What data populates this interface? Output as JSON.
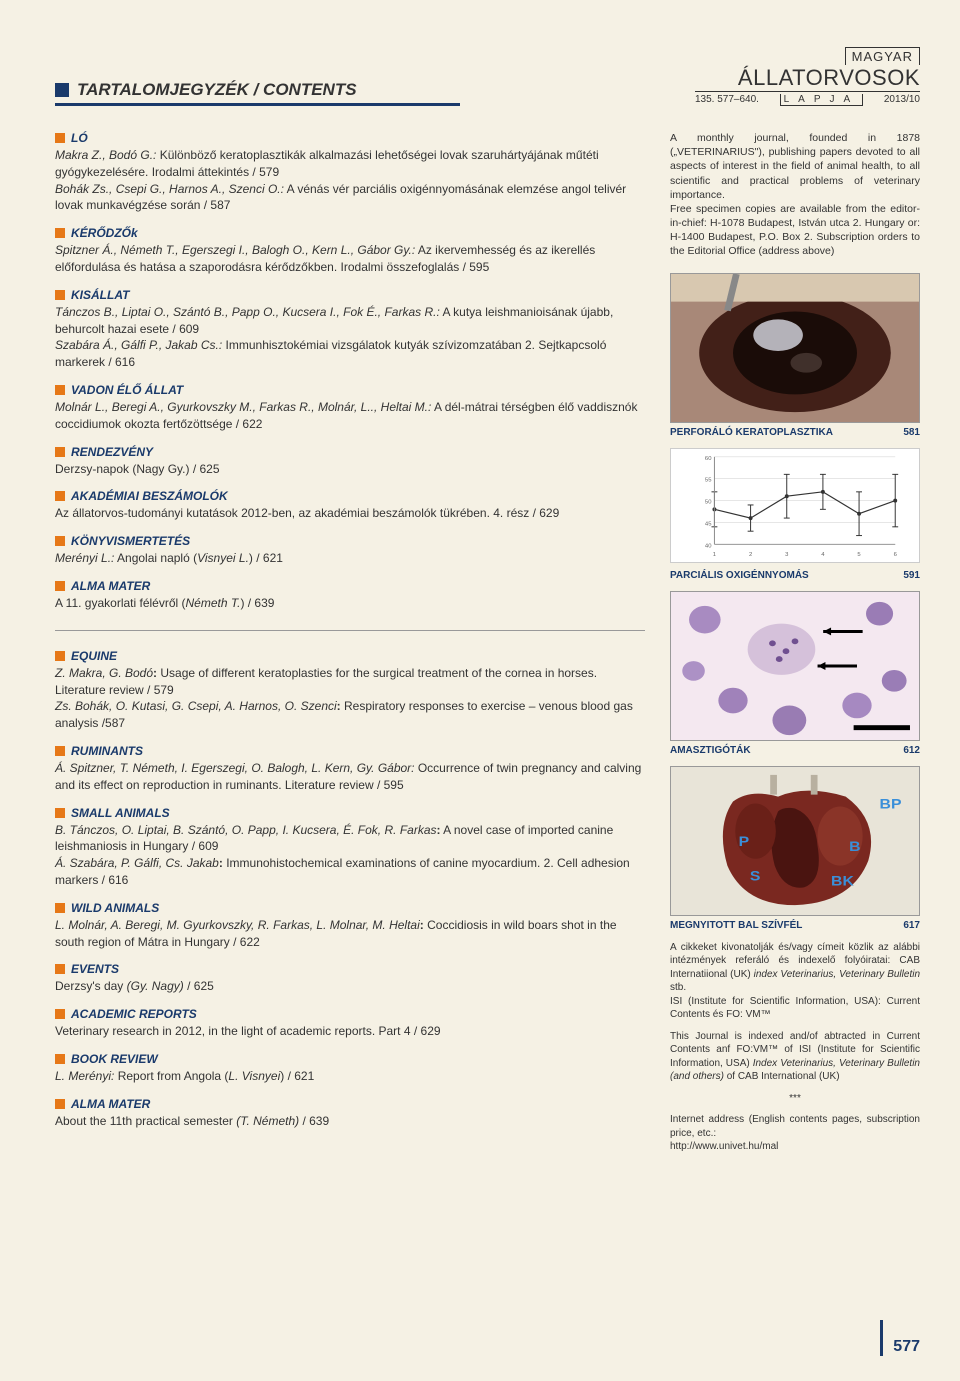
{
  "journal": {
    "supertitle": "MAGYAR",
    "title": "ÁLLATORVOSOK",
    "subtitle": "LAPJA",
    "issue_left": "135. 577–640.",
    "issue_right": "2013/10"
  },
  "contents_heading": "TARTALOMJEGYZÉK / CONTENTS",
  "page_number": "577",
  "about": {
    "p1": "A monthly journal, founded in 1878 („VETERINARIUS\"), publishing papers devoted to all aspects of interest in the field of animal health, to all scientific and practical problems of veterinary importance.",
    "p2": "Free specimen copies are available from the editor-in-chief: H-1078 Budapest, István utca 2. Hungary or: H-1400 Budapest, P.O. Box 2. Subscription orders to the Editorial Office (address above)"
  },
  "sections_hu": [
    {
      "label": "LÓ",
      "body": "<i>Makra Z., Bodó G.:</i> Különböző keratoplasztikák alkalmazási lehetőségei lovak szaruhártyájának műtéti gyógykezelésére. Irodalmi áttekintés / 579<br><i>Bohák Zs., Csepi G., Harnos A., Szenci O.:</i> A vénás vér parciális oxigénnyomásának elemzése angol telivér lovak munkavégzése során / 587"
    },
    {
      "label": "KÉRŐDZŐk",
      "body": "<i>Spitzner Á., Németh T., Egerszegi I., Balogh O., Kern L., Gábor Gy.:</i> Az ikervemhesség és az ikerellés előfordulása és hatása a szaporodásra kérődzőkben. Irodalmi összefoglalás / 595"
    },
    {
      "label": "KISÁLLAT",
      "body": "<i>Tánczos B., Liptai O., Szántó B., Papp O., Kucsera I., Fok É., Farkas R.:</i> A kutya leishmanioisának újabb, behurcolt hazai esete / 609<br><i>Szabára Á., Gálfi P., Jakab Cs.:</i> Immunhisztokémiai vizsgálatok kutyák szívizomzatában 2. Sejtkapcsoló markerek / 616"
    },
    {
      "label": "VADON ÉLŐ ÁLLAT",
      "body": "<i>Molnár L., Beregi A., Gyurkovszky M., Farkas R., Molnár, L.., Heltai M.:</i> A dél-mátrai térségben élő vaddisznók coccidiumok okozta fertőzöttsége / 622"
    },
    {
      "label": "RENDEZVÉNY",
      "body": "Derzsy-napok (Nagy Gy.) / 625"
    },
    {
      "label": "AKADÉMIAI BESZÁMOLÓK",
      "body": "Az állatorvos-tudományi kutatások 2012-ben, az akadémiai beszámolók tükrében. 4. rész / 629"
    },
    {
      "label": "KÖNYVISMERTETÉS",
      "body": "<i>Merényi L.:</i> Angolai napló (<i>Visnyei L.</i>) / 621"
    },
    {
      "label": "ALMA MATER",
      "body": "A 11. gyakorlati félévről (<i>Németh T.</i>) / 639"
    }
  ],
  "sections_en": [
    {
      "label": "EQUINE",
      "body": "<i>Z. Makra, G. Bodó</i><b>:</b> Usage of different keratoplasties for the surgical treatment of the cornea in horses. Literature review / 579<br><i>Zs. Bohák, O. Kutasi, G. Csepi, A. Harnos, O. Szenci</i><b>:</b> Respiratory responses to exercise – venous blood gas analysis /587"
    },
    {
      "label": "RUMINANTS",
      "body": "<i>Á. Spitzner, T. Németh, I. Egerszegi, O. Balogh, L. Kern, Gy. Gábor:</i> Occurrence of twin pregnancy and calving and its effect on reproduction in ruminants. Literature review / 595"
    },
    {
      "label": "SMALL ANIMALS",
      "body": "<i>B. Tánczos, O. Liptai, B. Szántó, O. Papp, I. Kucsera, É. Fok, R. Farkas</i><b>:</b> A novel case of imported canine leishmaniosis in Hungary / 609<br><i>Á. Szabára, P. Gálfi, Cs. Jakab</i><b>:</b> Immunohistochemical examinations of canine myocardium. 2. Cell adhesion markers / 616"
    },
    {
      "label": "WILD ANIMALS",
      "body": "<i>L. Molnár, A. Beregi, M. Gyurkovszky, R. Farkas, L. Molnar, M. Heltai</i><b>:</b> Coccidiosis in wild boars shot in the south region of Mátra in Hungary / 622"
    },
    {
      "label": "EVENTS",
      "body": "Derzsy's day <i>(Gy. Nagy)</i> / 625"
    },
    {
      "label": "ACADEMIC REPORTS",
      "body": "Veterinary research in 2012, in the light of academic reports. Part 4 / 629"
    },
    {
      "label": "BOOK REVIEW",
      "body": "<i>L. Merényi:</i> Report from Angola (<i>L. Visnyei</i>) / 621"
    },
    {
      "label": "ALMA MATER",
      "body": "About the 11th practical semester <i>(T. Németh)</i> / 639"
    }
  ],
  "figures": [
    {
      "caption": "PERFORÁLÓ KERATOPLASZTIKA",
      "page": "581",
      "type": "photo-eye"
    },
    {
      "caption": "PARCIÁLIS OXIGÉNNYOMÁS",
      "page": "591",
      "type": "chart"
    },
    {
      "caption": "AMASZTIGÓTÁK",
      "page": "612",
      "type": "photo-cells"
    },
    {
      "caption": "MEGNYITOTT BAL SZÍVFÉL",
      "page": "617",
      "type": "photo-heart"
    }
  ],
  "chart": {
    "type": "line-errorbar",
    "x": [
      1,
      2,
      3,
      4,
      5,
      6
    ],
    "y": [
      48,
      46,
      51,
      52,
      47,
      50
    ],
    "err": [
      4,
      3,
      5,
      4,
      5,
      6
    ],
    "ylim": [
      40,
      60
    ],
    "yticks": [
      40,
      45,
      50,
      55,
      60,
      65
    ],
    "line_color": "#333333",
    "grid_color": "#cccccc",
    "background": "#ffffff"
  },
  "indexing": {
    "p1": "A cikkeket kivonatolják és/vagy címeit közlik az alábbi intézmények referáló és indexelő folyóiratai: CAB Internatiional (UK) <i>index Veterinarius, Veterinary Bulletin</i> stb.",
    "p2": "ISI (Institute for Scientific Information, USA): Current Contents és FO: VM™",
    "p3": "This Journal is indexed and/of abtracted in Current Contents anf FO:VM™ of ISI (Institute for Scientific Information, USA) <i>Index Veterinarius, Veterinary Bulletin (and others)</i> of CAB International (UK)",
    "p4": "Internet address (English contents pages, subscription price, etc.:<br>http://www.univet.hu/mal"
  },
  "colors": {
    "primary": "#1a3a6b",
    "accent": "#e67817",
    "bg": "#f5f1e4"
  }
}
